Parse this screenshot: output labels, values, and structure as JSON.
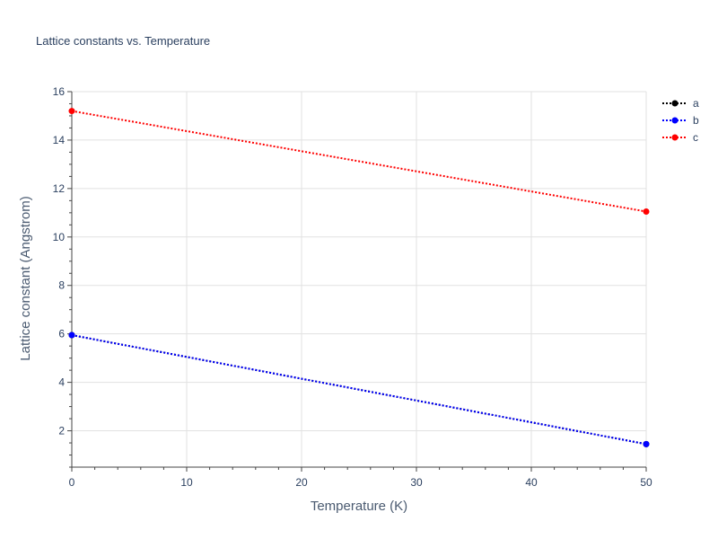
{
  "chart_data": {
    "type": "line",
    "title": "Lattice constants vs. Temperature",
    "xlabel": "Temperature (K)",
    "ylabel": "Lattice constant (Angstrom)",
    "xlim": [
      0,
      50
    ],
    "ylim": [
      0.5,
      16
    ],
    "x_ticks": [
      0,
      10,
      20,
      30,
      40,
      50
    ],
    "y_ticks": [
      2,
      4,
      6,
      8,
      10,
      12,
      14,
      16
    ],
    "grid": true,
    "legend_position": "top-right",
    "series": [
      {
        "name": "a",
        "color": "#000000",
        "x": [
          0,
          50
        ],
        "y": [
          5.95,
          1.45
        ]
      },
      {
        "name": "b",
        "color": "#0000ff",
        "x": [
          0,
          50
        ],
        "y": [
          5.95,
          1.45
        ]
      },
      {
        "name": "c",
        "color": "#ff0000",
        "x": [
          0,
          50
        ],
        "y": [
          15.2,
          11.05
        ]
      }
    ]
  }
}
